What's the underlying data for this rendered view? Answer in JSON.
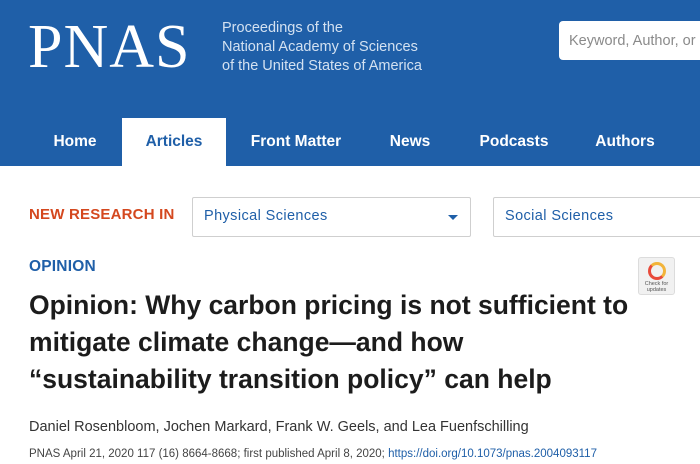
{
  "header": {
    "logo": "PNAS",
    "tagline": [
      "Proceedings of the",
      "National Academy of Sciences",
      "of the United States of America"
    ],
    "search_placeholder": "Keyword, Author, or DOI"
  },
  "nav": {
    "items": [
      {
        "label": "Home"
      },
      {
        "label": "Articles"
      },
      {
        "label": "Front Matter"
      },
      {
        "label": "News"
      },
      {
        "label": "Podcasts"
      },
      {
        "label": "Authors"
      }
    ],
    "active": "Articles"
  },
  "new_research": {
    "label": "NEW RESEARCH IN",
    "selects": [
      {
        "value": "Physical Sciences"
      },
      {
        "value": "Social Sciences"
      }
    ]
  },
  "article": {
    "section": "OPINION",
    "badge_text": [
      "Check for",
      "updates"
    ],
    "title": "Opinion: Why carbon pricing is not sufficient to mitigate climate change—and how “sustainability transition policy” can help",
    "authors": "Daniel Rosenbloom, Jochen Markard, Frank W. Geels, and Lea Fuenfschilling",
    "citation_prefix": "PNAS April 21, 2020 117 (16) 8664-8668; first published April 8, 2020;",
    "doi": "https://doi.org/10.1073/pnas.2004093117"
  },
  "colors": {
    "brand_blue": "#1f5fa8",
    "accent_orange": "#d4481f"
  }
}
